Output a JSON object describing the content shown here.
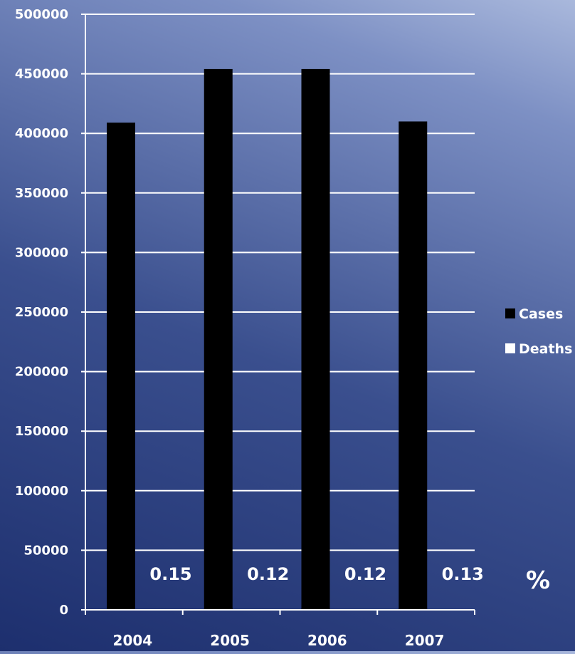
{
  "chart_data": {
    "type": "bar",
    "categories": [
      "2004",
      "2005",
      "2006",
      "2007"
    ],
    "series": [
      {
        "name": "Cases",
        "values": [
          409000,
          454000,
          454000,
          410000
        ],
        "color": "#000000"
      },
      {
        "name": "Deaths",
        "values": [
          0,
          0,
          0,
          0
        ],
        "color": "#ffffff"
      }
    ],
    "ylim": [
      0,
      500000
    ],
    "yticks": [
      0,
      50000,
      100000,
      150000,
      200000,
      250000,
      300000,
      350000,
      400000,
      450000,
      500000
    ],
    "ytick_labels": [
      "0",
      "50000",
      "100000",
      "150000",
      "200000",
      "250000",
      "300000",
      "350000",
      "400000",
      "450000",
      "500000"
    ],
    "death_rate_labels": [
      "0.15",
      "0.12",
      "0.12",
      "0.13"
    ],
    "unit_label": "%",
    "grid": true,
    "legend": "right"
  }
}
